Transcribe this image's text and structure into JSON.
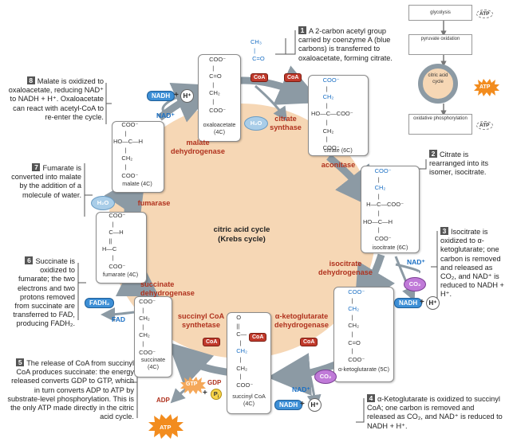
{
  "steps": {
    "s1": {
      "num": "1",
      "text": "A 2-carbon acetyl group carried by coenzyme A (blue carbons) is transferred to oxaloacetate, forming citrate."
    },
    "s2": {
      "num": "2",
      "text": "Citrate is rearranged into its isomer, isocitrate."
    },
    "s3": {
      "num": "3",
      "text": "Isocitrate is oxidized to α-ketoglutarate; one carbon is removed and released as CO₂, and NAD⁺ is reduced to NADH + H⁺."
    },
    "s4": {
      "num": "4",
      "text": "α-Ketoglutarate is oxidized to succinyl CoA; one carbon is removed and released as CO₂, and NAD⁺ is reduced to NADH + H⁺."
    },
    "s5": {
      "num": "5",
      "text": "The release of CoA from succinyl CoA produces succinate: the energy released converts GDP to GTP, which in turn converts ADP to ATP by substrate-level phosphorylation. This is the only ATP made directly in the citric acid cycle."
    },
    "s6": {
      "num": "6",
      "text": "Succinate is oxidized to fumarate; the two electrons and two protons removed from succinate are transferred to FAD, producing FADH₂."
    },
    "s7": {
      "num": "7",
      "text": "Fumarate is converted into malate by the addition of a molecule of water."
    },
    "s8": {
      "num": "8",
      "text": "Malate is oxidized to oxaloacetate, reducing NAD⁺ to NADH + H⁺. Oxaloacetate can react with acetyl-CoA to re-enter the cycle."
    }
  },
  "center": {
    "line1": "citric acid cycle",
    "line2": "(Krebs cycle)"
  },
  "enzymes": {
    "citrate_synthase": "citrate synthase",
    "aconitase": "aconitase",
    "isocitrate_dh": "isocitrate dehydrogenase",
    "akg_dh": "α-ketoglutarate dehydrogenase",
    "succinyl_coa_synthetase": "succinyl CoA synthetase",
    "succinate_dh": "succinate dehydrogenase",
    "fumarase": "fumarase",
    "malate_dh": "malate dehydrogenase"
  },
  "molecules": {
    "oxaloacetate": "oxaloacetate (4C)",
    "citrate": "citrate (6C)",
    "isocitrate": "isocitrate (6C)",
    "akg": "α-ketoglutarate (5C)",
    "succinyl_coa": "succinyl CoA (4C)",
    "succinate": "succinate (4C)",
    "fumarate": "fumarate (4C)",
    "malate": "malate (4C)"
  },
  "tokens": {
    "coa": "CoA",
    "nadh": "NADH",
    "nad": "NAD⁺",
    "hplus": "H⁺",
    "co2": "CO₂",
    "h2o": "H₂O",
    "fadh2": "FADH₂",
    "fad": "FAD",
    "gtp": "GTP",
    "gdp": "GDP",
    "pi": "P",
    "pi_sub": "i",
    "atp": "ATP",
    "adp": "ADP",
    "plus": "+"
  },
  "overview": {
    "glycolysis": "glycolysis",
    "pyruvate": "pyruvate oxidation",
    "cac": "citric acid cycle",
    "oxphos": "oxidative phosphorylation",
    "atp": "ATP"
  },
  "colors": {
    "cycle_fill": "#f6d7b5",
    "arrow": "#8c9aa4",
    "enzyme": "#b0321e",
    "carbon_blue": "#1a6fc4",
    "nadh": "#3d8fd6",
    "co2": "#c07ad8",
    "atp": "#f28c1e"
  }
}
